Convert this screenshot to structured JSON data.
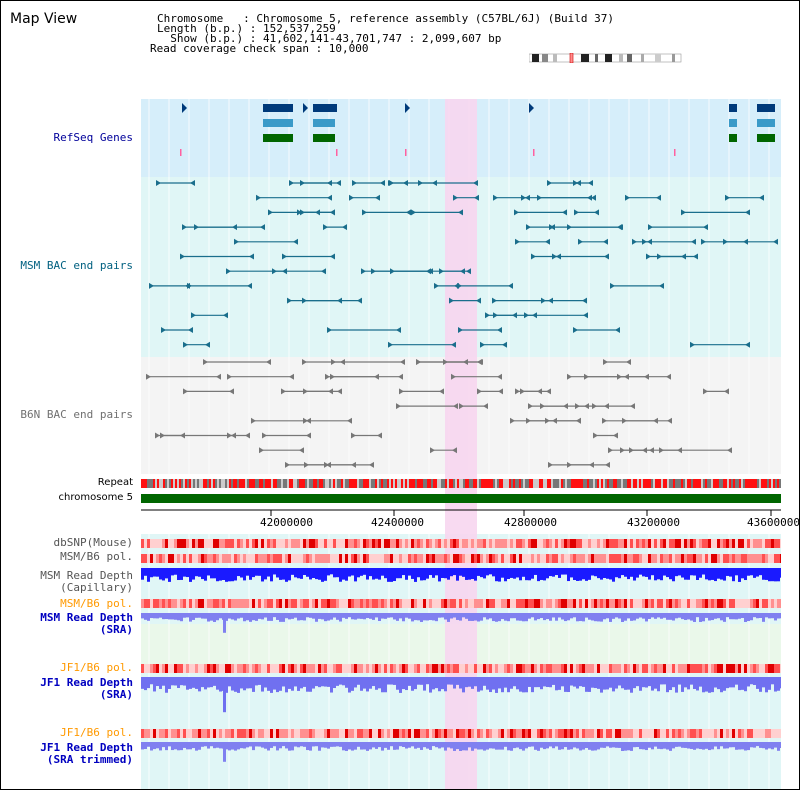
{
  "app": {
    "title": "Map View"
  },
  "info": {
    "chromosome_label": "Chromosome   : Chromosome 5, reference assembly (C57BL/6J) (Build 37)",
    "length_label": "Length (b.p.) : 152,537,259",
    "show_label": "  Show (b.p.) : 41,602,141-43,701,747 : 2,099,607 bp",
    "coverage_label": "Read coverage check span : 10,000"
  },
  "tracks": {
    "refseq": "RefSeq Genes",
    "msm_bac": "MSM BAC end pairs",
    "b6n_bac": "B6N BAC end pairs",
    "repeat": "Repeat",
    "chromosome": "chromosome 5",
    "dbsnp": "dbSNP(Mouse)",
    "msm_b6_pol_1": "MSM/B6 pol.",
    "msm_read_depth_cap_1": "MSM Read Depth",
    "msm_read_depth_cap_2": "(Capillary)",
    "msm_b6_pol_2": "MSM/B6 pol.",
    "msm_read_depth_sra_1": "MSM Read Depth",
    "msm_read_depth_sra_2": "(SRA)",
    "jf1_b6_pol_1": "JF1/B6 pol.",
    "jf1_read_depth_sra_1": "JF1 Read Depth",
    "jf1_read_depth_sra_2": "(SRA)",
    "jf1_b6_pol_2": "JF1/B6 pol.",
    "jf1_read_depth_trim_1": "JF1 Read Depth",
    "jf1_read_depth_trim_2": "(SRA trimmed)"
  },
  "axis": {
    "ticks": [
      "42000000",
      "42400000",
      "42800000",
      "43200000",
      "43600000"
    ]
  },
  "colors": {
    "refseq_label": "#00009a",
    "msm_label": "#006080",
    "b6n_label": "#707070",
    "orange_label": "#ff9900",
    "blue_label": "#0000c0",
    "highlight": "#f7d6f0",
    "chromosome_bar": "#006600"
  }
}
